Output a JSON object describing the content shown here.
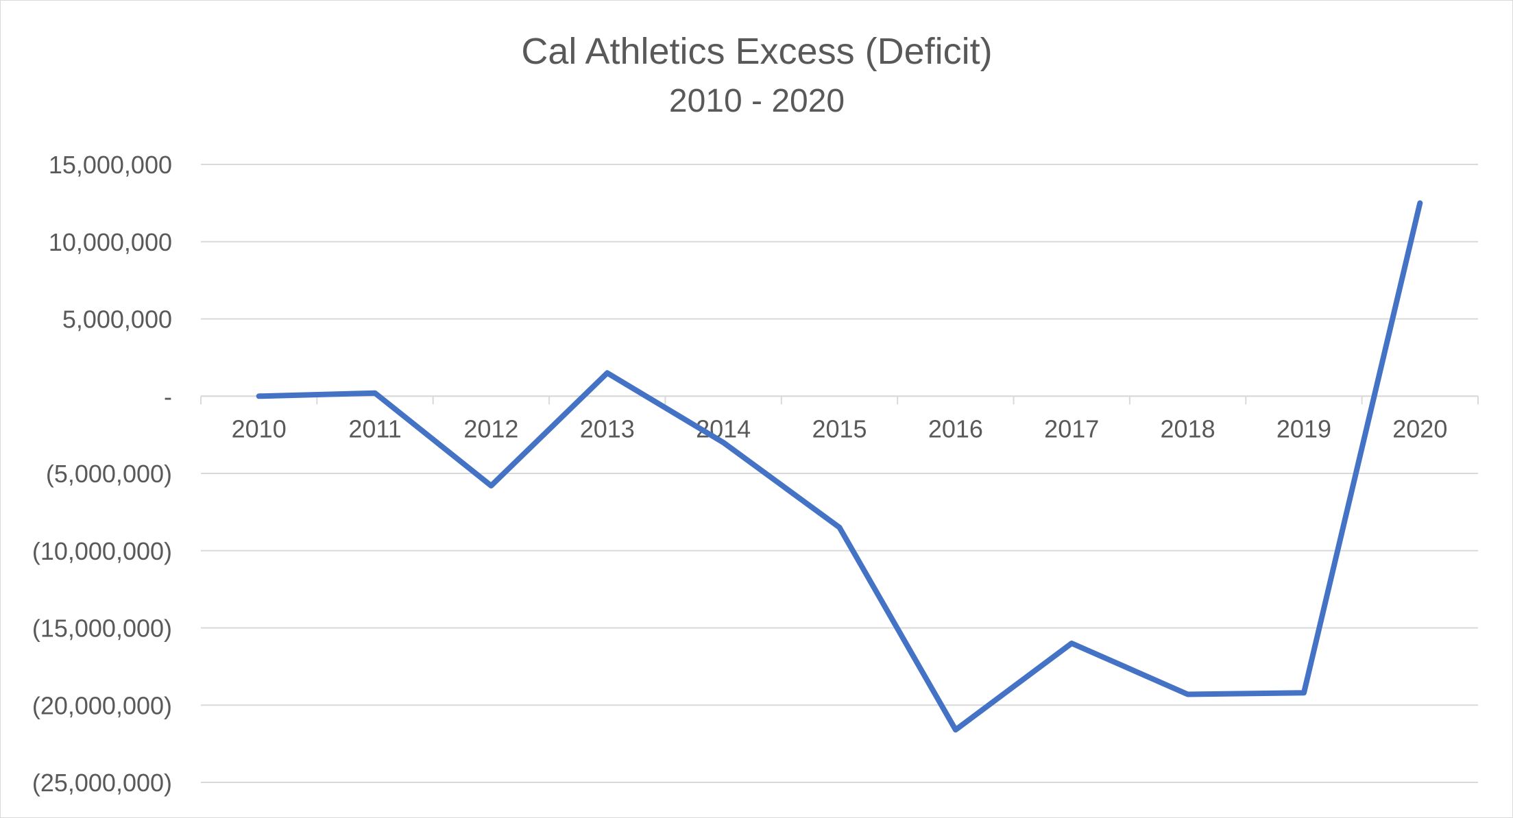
{
  "chart_data": {
    "type": "line",
    "title": "Cal Athletics Excess (Deficit)",
    "subtitle": "2010 - 2020",
    "xlabel": "",
    "ylabel": "",
    "categories": [
      "2010",
      "2011",
      "2012",
      "2013",
      "2014",
      "2015",
      "2016",
      "2017",
      "2018",
      "2019",
      "2020"
    ],
    "series": [
      {
        "values": [
          0,
          200000,
          -5800000,
          1500000,
          -3000000,
          -8500000,
          -21600000,
          -16000000,
          -19300000,
          -19200000,
          12500000
        ],
        "color": "#4472c4"
      }
    ],
    "ylim": [
      -25000000,
      15000000
    ],
    "yticks": [
      {
        "value": 15000000,
        "label": "15,000,000"
      },
      {
        "value": 10000000,
        "label": "10,000,000"
      },
      {
        "value": 5000000,
        "label": "5,000,000"
      },
      {
        "value": 0,
        "label": "-"
      },
      {
        "value": -5000000,
        "label": "(5,000,000)"
      },
      {
        "value": -10000000,
        "label": "(10,000,000)"
      },
      {
        "value": -15000000,
        "label": "(15,000,000)"
      },
      {
        "value": -20000000,
        "label": "(20,000,000)"
      },
      {
        "value": -25000000,
        "label": "(25,000,000)"
      }
    ],
    "grid": true,
    "legend": "none",
    "colors": {
      "text": "#595959",
      "grid": "#d9d9d9",
      "line": "#4472c4"
    }
  }
}
